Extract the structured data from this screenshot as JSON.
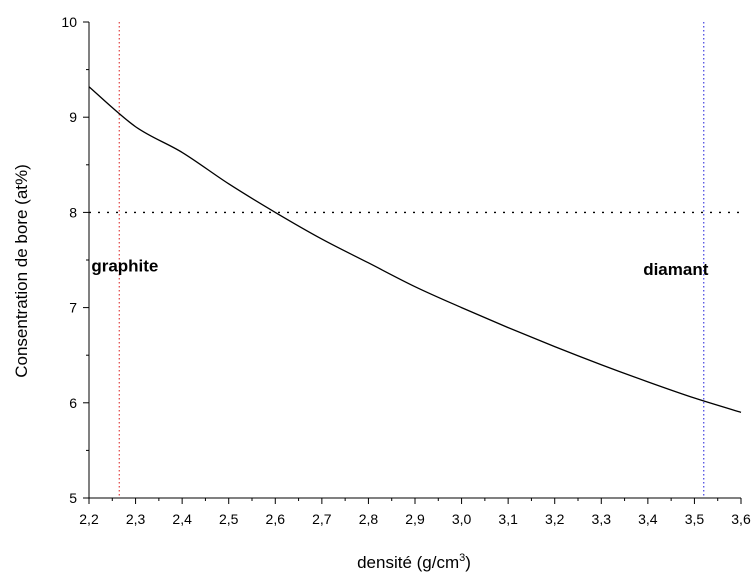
{
  "chart_data": {
    "type": "line",
    "xlabel": "densité (g/cm",
    "xlabel_unit_sup": "3",
    "xlabel_close": ")",
    "ylabel": "Consentration de bore (at%)",
    "xlim": [
      2.2,
      3.6
    ],
    "ylim": [
      5,
      10
    ],
    "x_ticks": [
      "2,2",
      "2,3",
      "2,4",
      "2,5",
      "2,6",
      "2,7",
      "2,8",
      "2,9",
      "3,0",
      "3,1",
      "3,2",
      "3,3",
      "3,4",
      "3,5",
      "3,6"
    ],
    "y_ticks": [
      "5",
      "6",
      "7",
      "8",
      "9",
      "10"
    ],
    "grid": false,
    "series": [
      {
        "values": [
          {
            "x": 2.2,
            "y": 9.32
          },
          {
            "x": 2.3,
            "y": 8.9
          },
          {
            "x": 2.4,
            "y": 8.63
          },
          {
            "x": 2.5,
            "y": 8.3
          },
          {
            "x": 2.6,
            "y": 8.0
          },
          {
            "x": 2.7,
            "y": 7.72
          },
          {
            "x": 2.8,
            "y": 7.47
          },
          {
            "x": 2.9,
            "y": 7.22
          },
          {
            "x": 3.0,
            "y": 7.0
          },
          {
            "x": 3.1,
            "y": 6.79
          },
          {
            "x": 3.2,
            "y": 6.59
          },
          {
            "x": 3.3,
            "y": 6.4
          },
          {
            "x": 3.4,
            "y": 6.22
          },
          {
            "x": 3.5,
            "y": 6.05
          },
          {
            "x": 3.6,
            "y": 5.9
          }
        ],
        "color": "#000000"
      }
    ],
    "reference_lines": [
      {
        "orientation": "vertical",
        "x": 2.265,
        "color": "#e04040",
        "style": "dotted"
      },
      {
        "orientation": "vertical",
        "x": 3.52,
        "color": "#4040e0",
        "style": "dotted"
      },
      {
        "orientation": "horizontal",
        "y": 8.0,
        "color": "#000000",
        "style": "dotted"
      }
    ],
    "annotations": [
      {
        "text": "graphite",
        "x": 2.205,
        "y": 7.38
      },
      {
        "text": "diamant",
        "x": 3.39,
        "y": 7.34
      }
    ]
  }
}
